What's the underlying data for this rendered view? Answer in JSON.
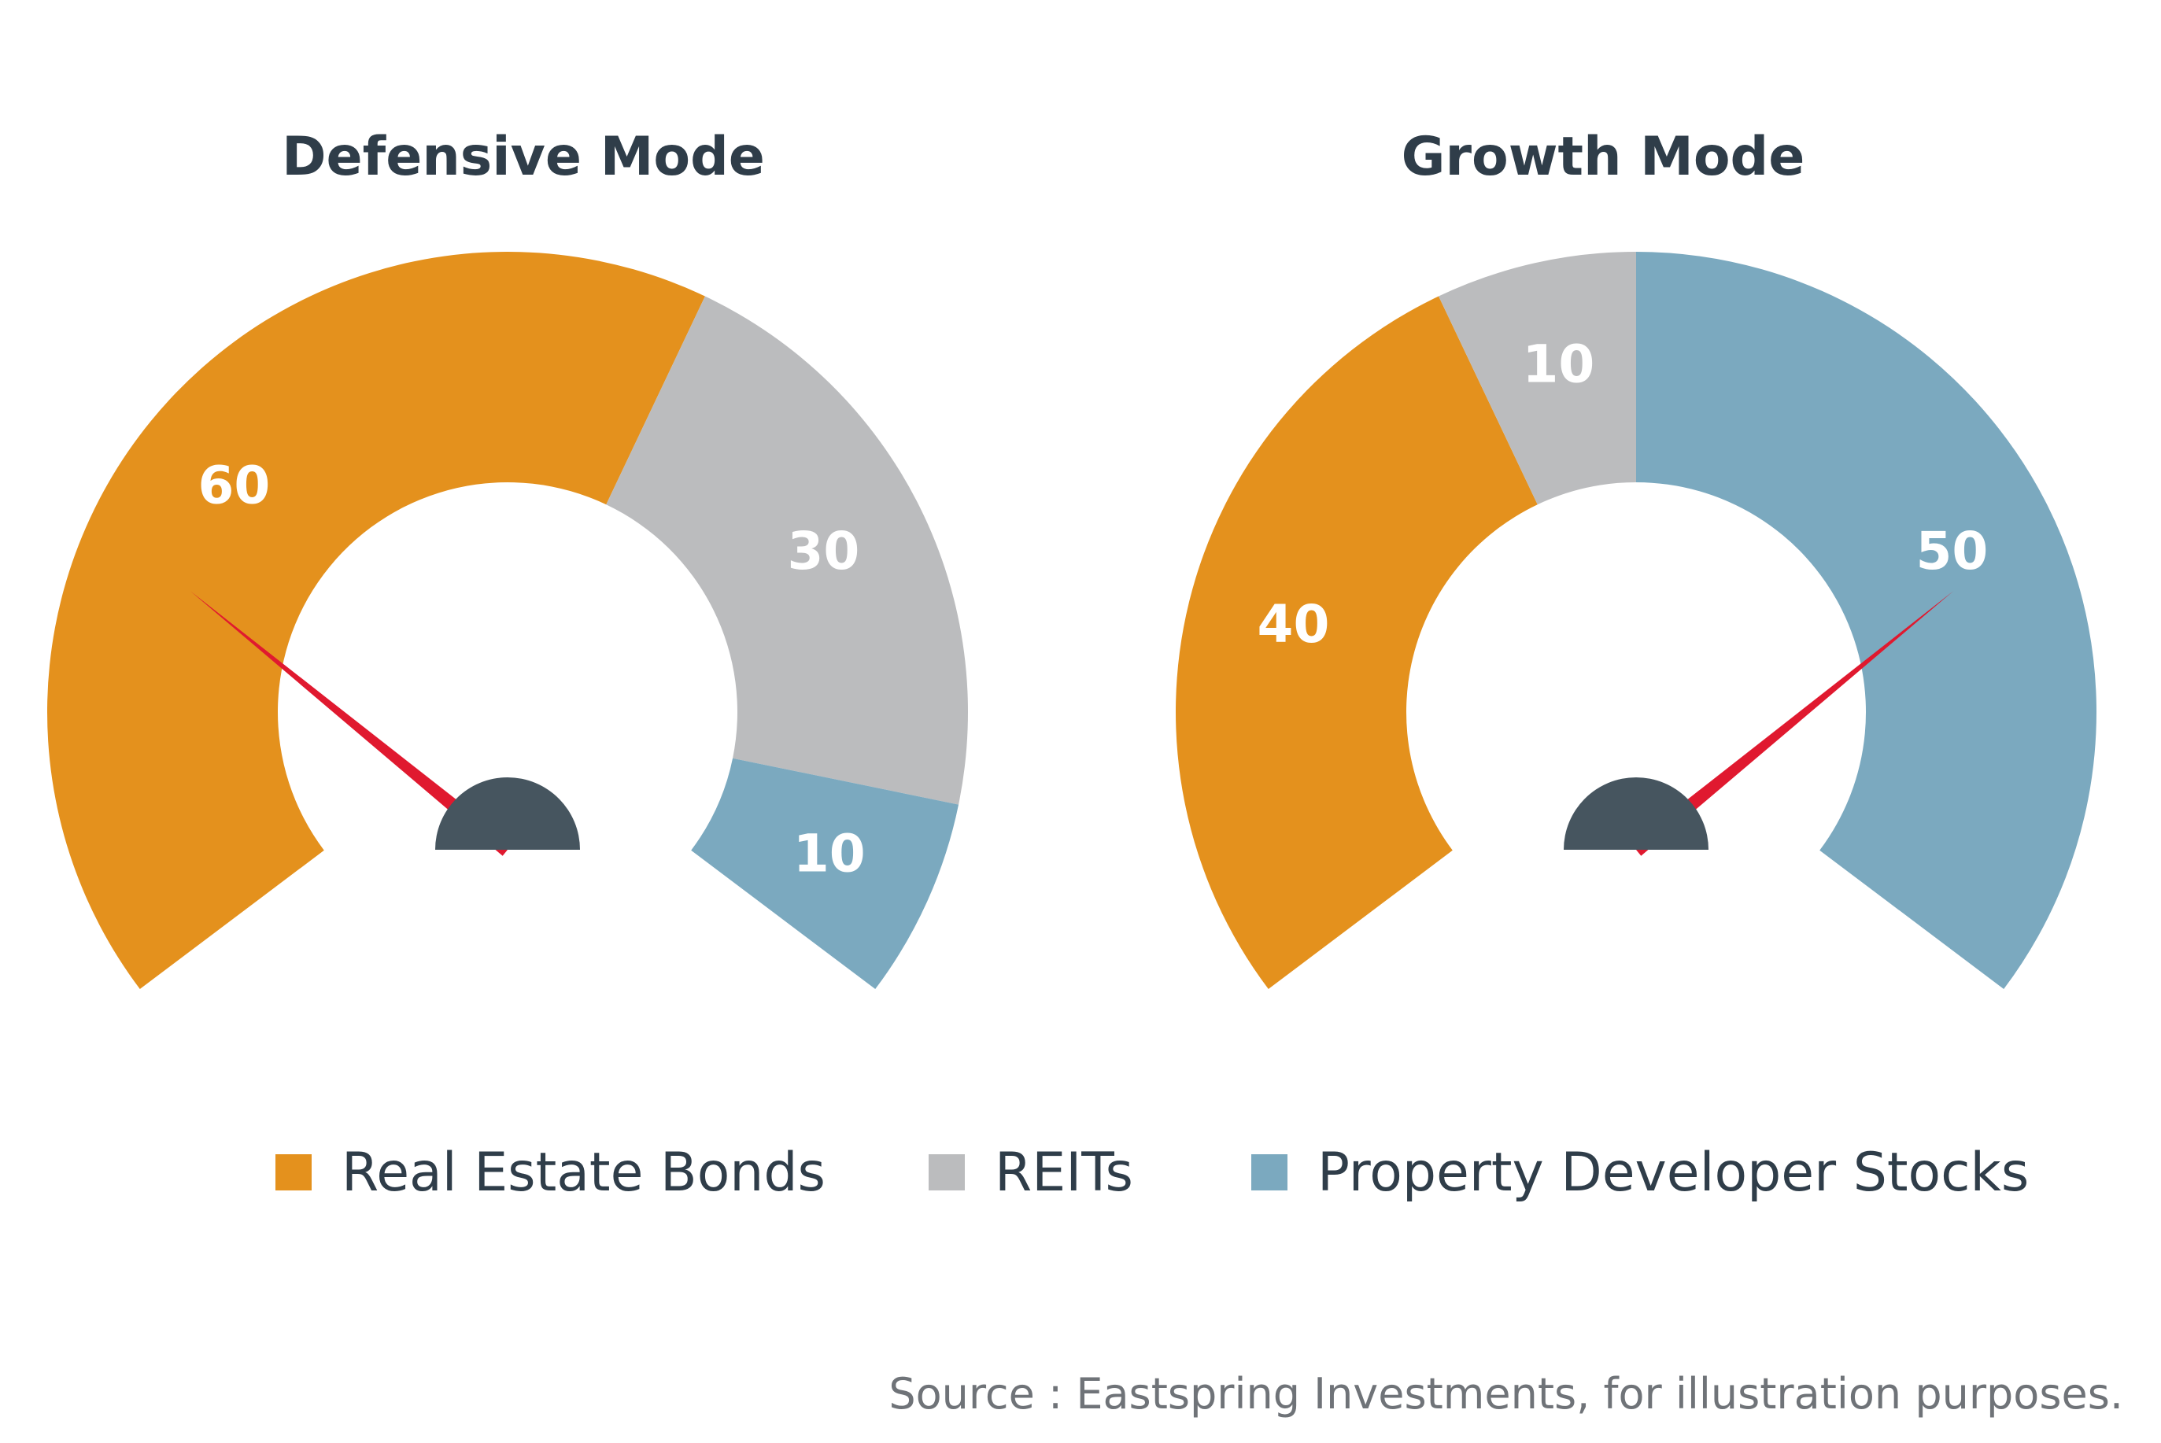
{
  "colors": {
    "bonds": "#e4911d",
    "reits": "#bbbcbe",
    "stocks": "#7ba9bf",
    "needle": "#e0192f",
    "hub": "#46555f"
  },
  "chart_data": [
    {
      "type": "gauge",
      "title": "Defensive Mode",
      "unit": "%",
      "segments": [
        {
          "name": "Real Estate Bonds",
          "value": 60
        },
        {
          "name": "REITs",
          "value": 30
        },
        {
          "name": "Property Developer Stocks",
          "value": 10
        }
      ],
      "needle_value": 30
    },
    {
      "type": "gauge",
      "title": "Growth Mode",
      "unit": "%",
      "segments": [
        {
          "name": "Real Estate Bonds",
          "value": 40
        },
        {
          "name": "REITs",
          "value": 10
        },
        {
          "name": "Property Developer Stocks",
          "value": 50
        }
      ],
      "needle_value": 70
    }
  ],
  "legend": [
    {
      "label": "Real Estate Bonds",
      "color_key": "bonds"
    },
    {
      "label": "REITs",
      "color_key": "reits"
    },
    {
      "label": "Property Developer Stocks",
      "color_key": "stocks"
    }
  ],
  "source": "Source : Eastspring Investments, for illustration purposes."
}
